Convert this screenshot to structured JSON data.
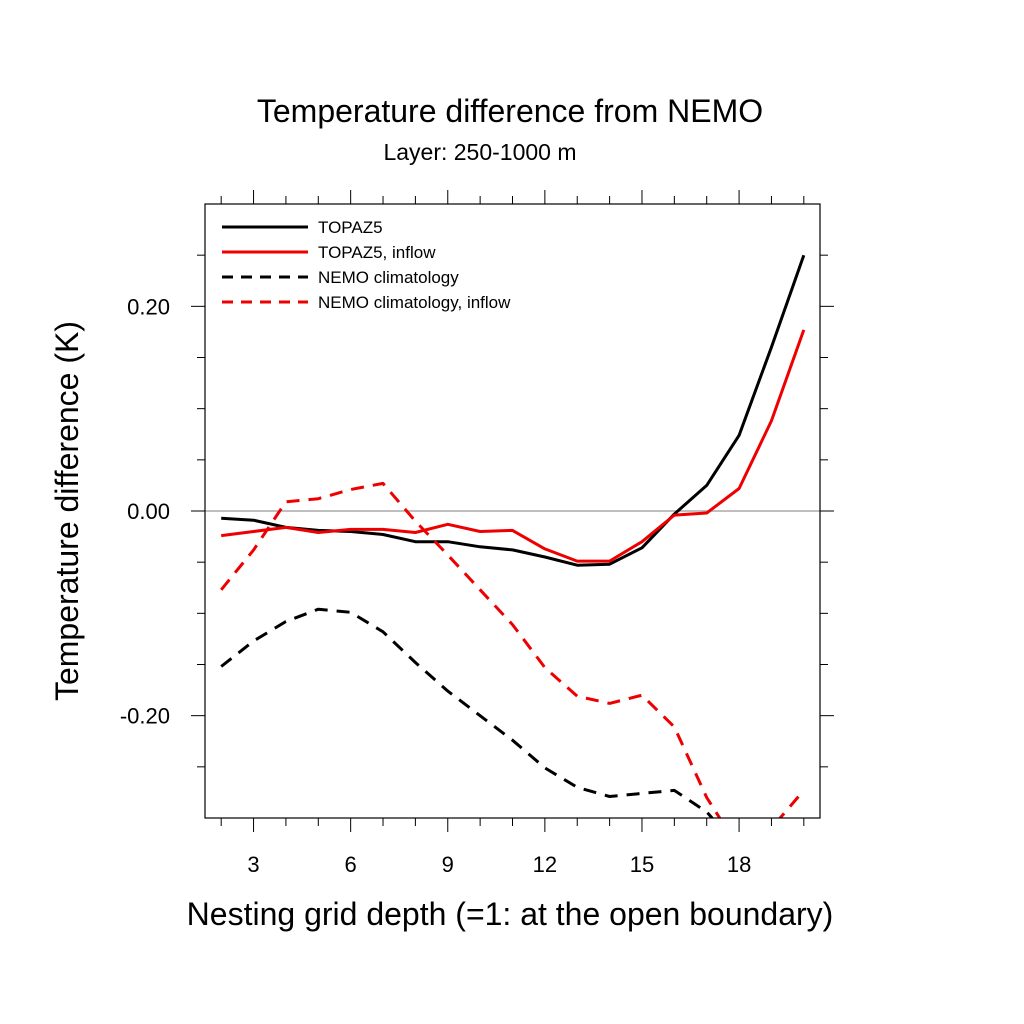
{
  "chart_data": {
    "type": "line",
    "title": "Temperature difference from NEMO",
    "subtitle": "Layer: 250-1000 m",
    "xlabel": "Nesting grid depth (=1: at the open boundary)",
    "ylabel": "Temperature difference (K)",
    "xlim": [
      1.5,
      20.5
    ],
    "ylim": [
      -0.3,
      0.3
    ],
    "x_ticks": [
      3,
      6,
      9,
      12,
      15,
      18
    ],
    "x_tick_labels": [
      "3",
      "6",
      "9",
      "12",
      "15",
      "18"
    ],
    "y_ticks": [
      -0.2,
      0.0,
      0.2
    ],
    "y_tick_labels": [
      "-0.20",
      "0.00",
      "0.20"
    ],
    "x_minor_ticks": [
      2,
      3,
      4,
      5,
      6,
      7,
      8,
      9,
      10,
      11,
      12,
      13,
      14,
      15,
      16,
      17,
      18,
      19,
      20
    ],
    "y_minor_ticks": [
      -0.25,
      -0.2,
      -0.15,
      -0.1,
      -0.05,
      0,
      0.05,
      0.1,
      0.15,
      0.2,
      0.25
    ],
    "zero_line": true,
    "legend_position": "top-left",
    "x": [
      2,
      3,
      4,
      5,
      6,
      7,
      8,
      9,
      10,
      11,
      12,
      13,
      14,
      15,
      16,
      17,
      18,
      19,
      20
    ],
    "series": [
      {
        "name": "TOPAZ5",
        "color": "#000000",
        "dash": "solid",
        "values": [
          -0.007,
          -0.009,
          -0.016,
          -0.019,
          -0.02,
          -0.023,
          -0.03,
          -0.03,
          -0.035,
          -0.038,
          -0.045,
          -0.053,
          -0.052,
          -0.036,
          -0.003,
          0.025,
          0.074,
          0.16,
          0.25
        ]
      },
      {
        "name": "TOPAZ5, inflow",
        "color": "#ee0000",
        "dash": "solid",
        "values": [
          -0.024,
          -0.02,
          -0.016,
          -0.021,
          -0.018,
          -0.018,
          -0.021,
          -0.013,
          -0.02,
          -0.019,
          -0.037,
          -0.049,
          -0.049,
          -0.03,
          -0.004,
          -0.002,
          0.022,
          0.088,
          0.177
        ]
      },
      {
        "name": "NEMO climatology",
        "color": "#000000",
        "dash": "dashed",
        "values": [
          -0.152,
          -0.127,
          -0.108,
          -0.096,
          -0.099,
          -0.118,
          -0.148,
          -0.176,
          -0.2,
          -0.224,
          -0.251,
          -0.27,
          -0.279,
          -0.276,
          -0.273,
          -0.294,
          -0.33,
          -0.34,
          -0.33
        ]
      },
      {
        "name": "NEMO climatology, inflow",
        "color": "#ee0000",
        "dash": "dashed",
        "values": [
          -0.077,
          -0.038,
          0.009,
          0.012,
          0.021,
          0.027,
          -0.01,
          -0.043,
          -0.077,
          -0.111,
          -0.153,
          -0.181,
          -0.188,
          -0.18,
          -0.211,
          -0.28,
          -0.33,
          -0.31,
          -0.273
        ]
      }
    ]
  }
}
